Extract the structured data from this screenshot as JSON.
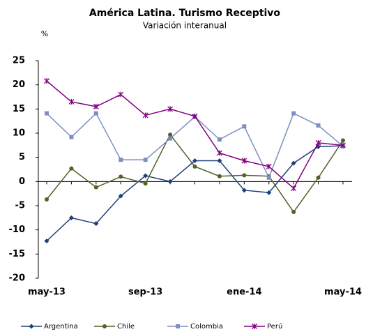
{
  "chart_data": {
    "type": "line",
    "title": "América Latina. Turismo Receptivo",
    "subtitle": "Variación interanual",
    "y_label": "%",
    "categories": [
      "may-13",
      null,
      null,
      null,
      "sep-13",
      null,
      null,
      null,
      "ene-14",
      null,
      null,
      null,
      "may-14"
    ],
    "series": [
      {
        "name": "Argentina",
        "color": "#1f3f7a",
        "marker": "diamond",
        "values": [
          -12.3,
          -7.5,
          -8.7,
          -3,
          1.2,
          0,
          4.3,
          4.3,
          -1.8,
          -2.3,
          3.8,
          7.2,
          7.4
        ]
      },
      {
        "name": "Chile",
        "color": "#4f6228",
        "marker": "circle",
        "values": [
          -3.7,
          2.7,
          -1.2,
          1,
          -0.4,
          9.7,
          3.1,
          1.1,
          1.3,
          1.1,
          -6.3,
          0.8,
          8.5
        ]
      },
      {
        "name": "Colombia",
        "color": "#7f8fbf",
        "marker": "square",
        "values": [
          14.1,
          9.2,
          14.1,
          4.5,
          4.5,
          8.9,
          13.4,
          8.7,
          11.4,
          0.8,
          14.1,
          11.6,
          7.3
        ]
      },
      {
        "name": "Perú",
        "color": "#800080",
        "marker": "star",
        "values": [
          20.8,
          16.5,
          15.5,
          18,
          13.7,
          15,
          13.5,
          5.9,
          4.3,
          3.1,
          -1.4,
          8,
          7.5
        ]
      }
    ],
    "ylim": [
      -20,
      25
    ],
    "yticks": [
      -20,
      -15,
      -10,
      -5,
      0,
      5,
      10,
      15,
      20,
      25
    ],
    "legend": "bottom"
  }
}
